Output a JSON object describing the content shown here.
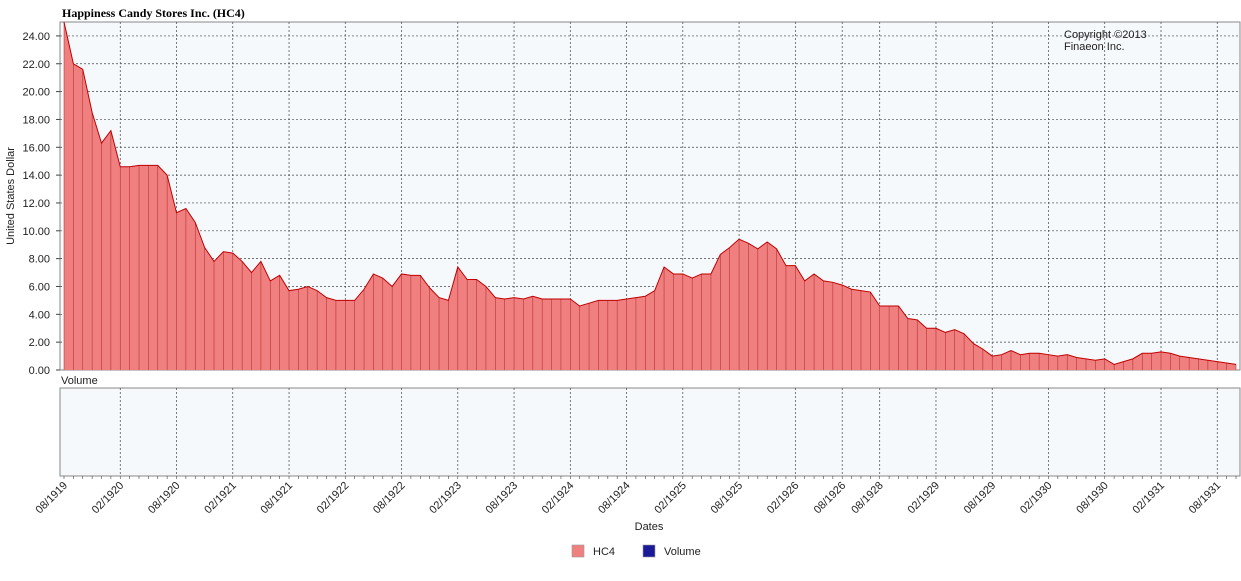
{
  "chart_data": {
    "type": "area",
    "title": "Happiness Candy Stores Inc. (HC4)",
    "copyright_line1": "Copyright ©2013",
    "copyright_line2": "Finaeon Inc.",
    "ylabel": "United States Dollar",
    "xlabel": "Dates",
    "ylim": [
      0,
      25
    ],
    "yticks": [
      "0.00",
      "2.00",
      "4.00",
      "6.00",
      "8.00",
      "10.00",
      "12.00",
      "14.00",
      "16.00",
      "18.00",
      "20.00",
      "22.00",
      "24.00"
    ],
    "x_tick_labels": [
      "08/1919",
      "02/1920",
      "08/1920",
      "02/1921",
      "08/1921",
      "02/1922",
      "08/1922",
      "02/1923",
      "08/1923",
      "02/1924",
      "08/1924",
      "02/1925",
      "08/1925",
      "02/1926",
      "08/1926",
      "08/1928",
      "02/1929",
      "08/1929",
      "02/1930",
      "08/1930",
      "02/1931",
      "08/1931"
    ],
    "grid": true,
    "colors": {
      "series": "#f08080",
      "series_line": "#c00000",
      "volume": "#1a1a99",
      "plot_bg": "#f5f9fc"
    },
    "series": [
      {
        "name": "HC4",
        "values": [
          25.0,
          22.0,
          21.6,
          18.5,
          16.3,
          17.2,
          14.6,
          14.6,
          14.7,
          14.7,
          14.7,
          14.0,
          11.3,
          11.6,
          10.6,
          8.8,
          7.8,
          8.5,
          8.4,
          7.8,
          7.0,
          7.8,
          6.4,
          6.8,
          5.7,
          5.8,
          6.0,
          5.7,
          5.2,
          5.0,
          5.0,
          5.0,
          5.8,
          6.9,
          6.6,
          6.0,
          6.9,
          6.8,
          6.8,
          5.9,
          5.2,
          5.0,
          7.4,
          6.5,
          6.5,
          6.0,
          5.2,
          5.1,
          5.2,
          5.1,
          5.3,
          5.1,
          5.1,
          5.1,
          5.1,
          4.6,
          4.8,
          5.0,
          5.0,
          5.0,
          5.1,
          5.2,
          5.3,
          5.7,
          7.4,
          6.9,
          6.9,
          6.6,
          6.9,
          6.9,
          8.3,
          8.8,
          9.4,
          9.1,
          8.7,
          9.2,
          8.7,
          7.5,
          7.5,
          6.4,
          6.9,
          6.4,
          6.3,
          6.1,
          5.8,
          5.7,
          5.6,
          4.6,
          4.6,
          4.6,
          3.7,
          3.6,
          3.0,
          3.0,
          2.7,
          2.9,
          2.6,
          1.9,
          1.5,
          1.0,
          1.1,
          1.4,
          1.1,
          1.2,
          1.2,
          1.1,
          1.0,
          1.1,
          0.9,
          0.8,
          0.7,
          0.8,
          0.4,
          0.6,
          0.8,
          1.2,
          1.2,
          1.3,
          1.2,
          1.0,
          0.9,
          0.8,
          0.7,
          0.6,
          0.5,
          0.4
        ]
      },
      {
        "name": "Volume",
        "values": []
      }
    ],
    "volume_panel_label": "Volume",
    "legend": [
      "HC4",
      "Volume"
    ],
    "legend_position": "bottom-center"
  }
}
